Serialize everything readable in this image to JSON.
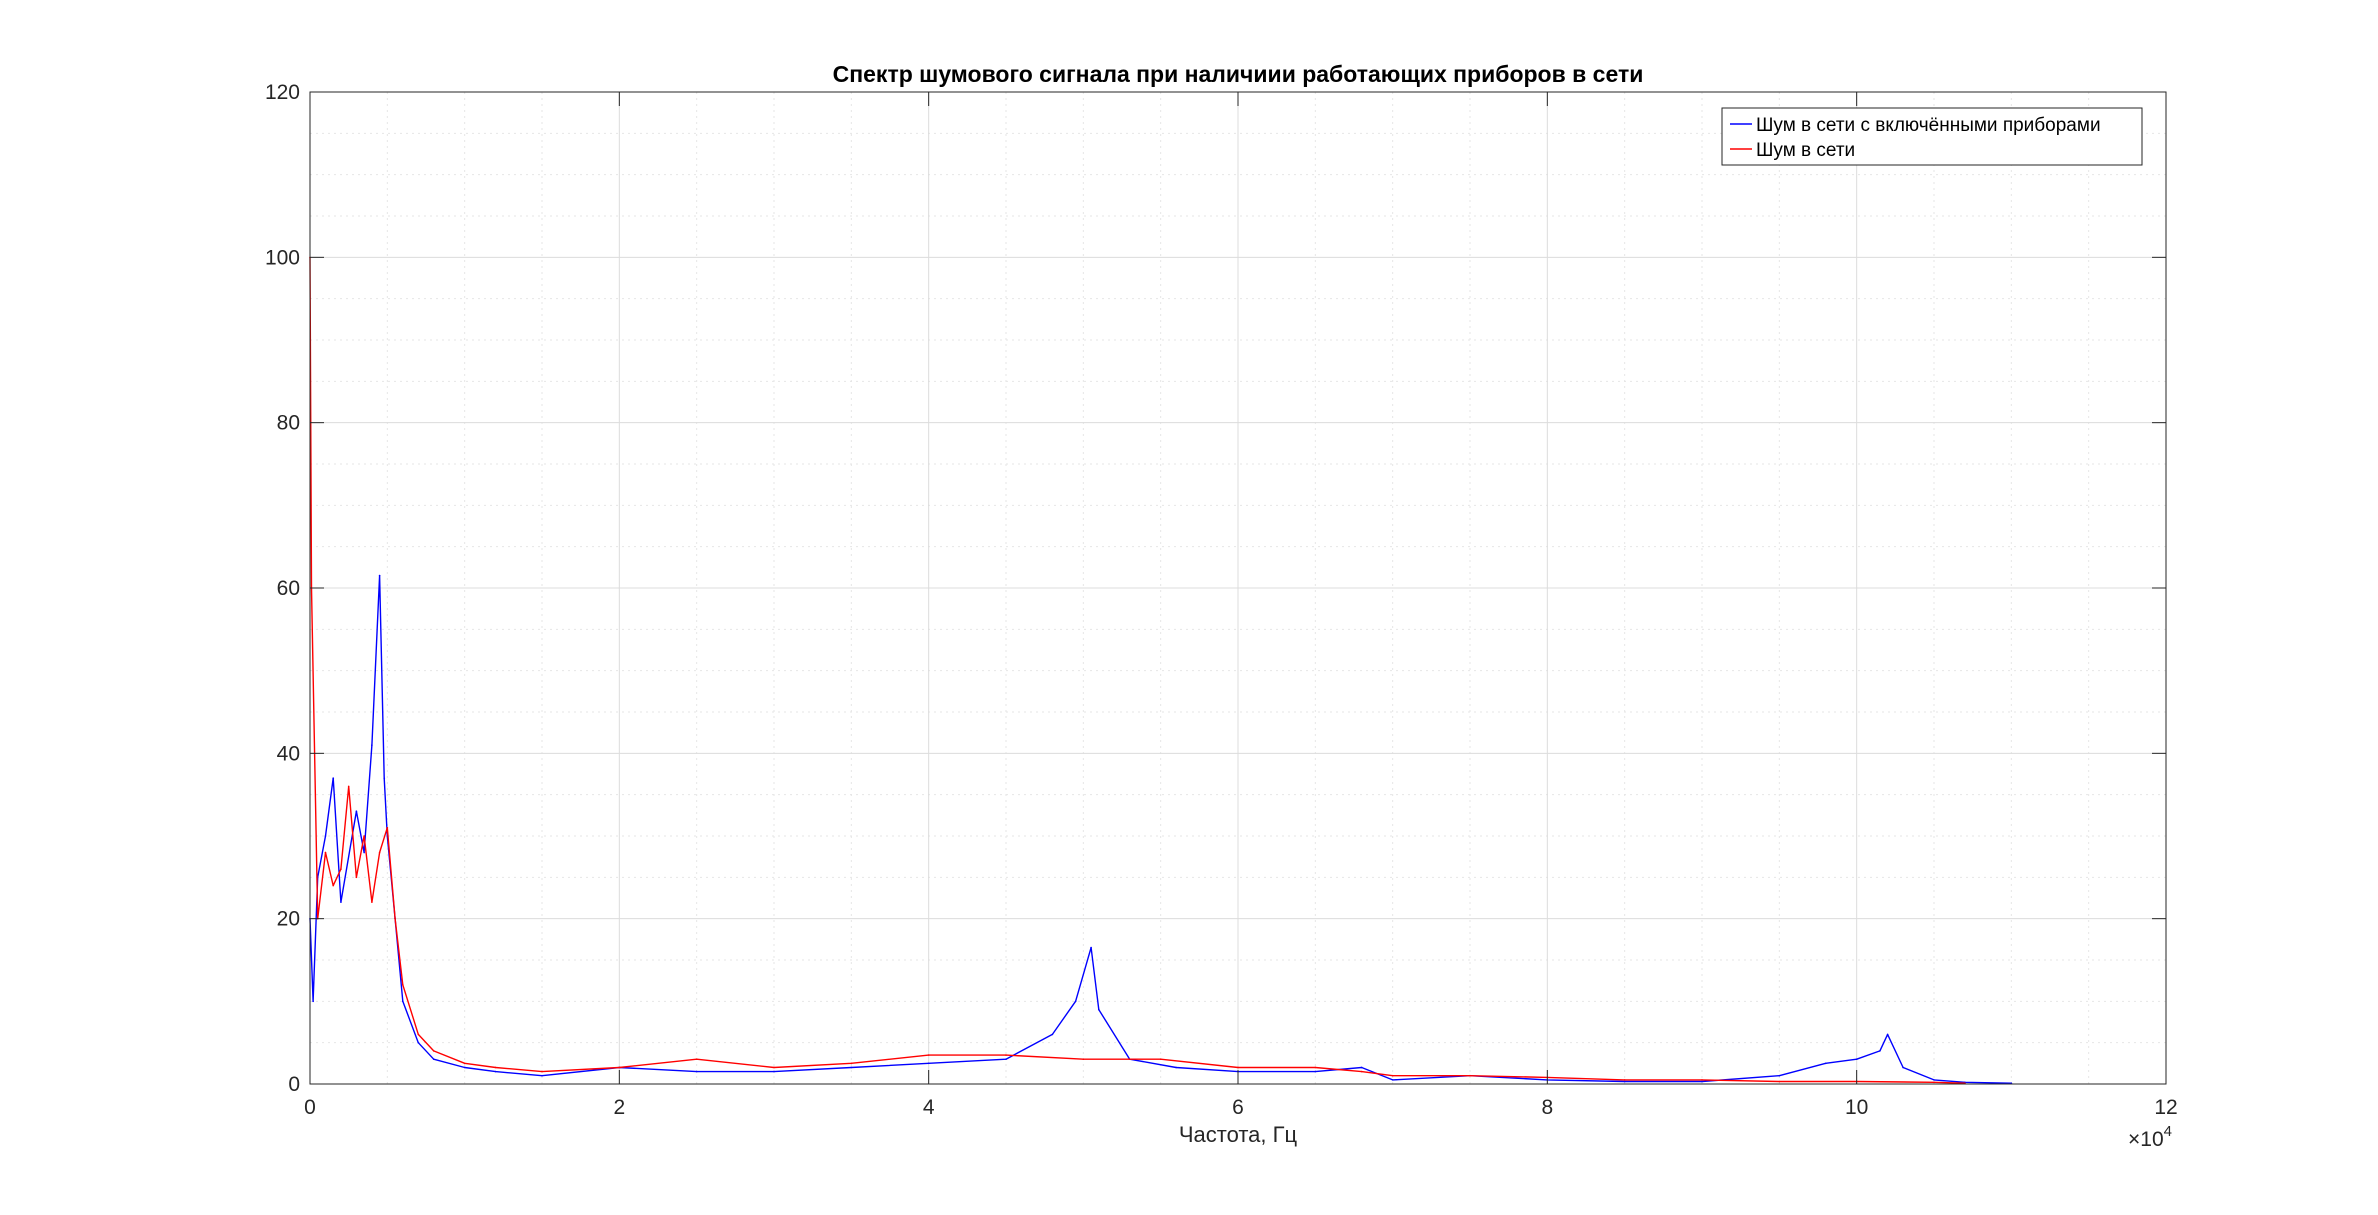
{
  "chart_data": {
    "type": "line",
    "title": "Спектр шумового сигнала при наличиии работающих приборов в сети",
    "xlabel": "Частота, Гц",
    "ylabel": "",
    "x_exponent_label": "×10",
    "x_exponent_power": "4",
    "xlim": [
      0,
      12
    ],
    "ylim": [
      0,
      120
    ],
    "x_ticks": [
      0,
      2,
      4,
      6,
      8,
      10,
      12
    ],
    "y_ticks": [
      0,
      20,
      40,
      60,
      80,
      100,
      120
    ],
    "x_tick_labels": [
      "0",
      "2",
      "4",
      "6",
      "8",
      "10",
      "12"
    ],
    "y_tick_labels": [
      "0",
      "20",
      "40",
      "60",
      "80",
      "100",
      "120"
    ],
    "grid": true,
    "minor_grid": true,
    "legend_position": "top-right",
    "series": [
      {
        "name": "Шум в сети с включёнными приборами",
        "color": "#0000ff",
        "x": [
          0,
          0.02,
          0.05,
          0.1,
          0.15,
          0.2,
          0.3,
          0.35,
          0.4,
          0.45,
          0.48,
          0.5,
          0.55,
          0.6,
          0.7,
          0.8,
          1.0,
          1.2,
          1.5,
          2.0,
          2.5,
          3.0,
          3.5,
          4.0,
          4.5,
          4.8,
          4.95,
          5.05,
          5.1,
          5.3,
          5.6,
          6.0,
          6.5,
          6.8,
          7.0,
          7.5,
          8.0,
          8.5,
          9.0,
          9.5,
          9.8,
          10.0,
          10.15,
          10.2,
          10.3,
          10.5,
          10.7,
          11.0
        ],
        "y": [
          20,
          10,
          25,
          30,
          37,
          22,
          33,
          28,
          41,
          61.5,
          37,
          30,
          20,
          10,
          5,
          3,
          2,
          1.5,
          1,
          2,
          1.5,
          1.5,
          2,
          2.5,
          3,
          6,
          10,
          16.5,
          9,
          3,
          2,
          1.5,
          1.5,
          2,
          0.5,
          1,
          0.5,
          0.3,
          0.3,
          1,
          2.5,
          3,
          4,
          6,
          2,
          0.5,
          0.2,
          0.1
        ]
      },
      {
        "name": "Шум в сети",
        "color": "#ff0000",
        "x": [
          0,
          0.01,
          0.05,
          0.1,
          0.15,
          0.2,
          0.25,
          0.3,
          0.35,
          0.4,
          0.45,
          0.5,
          0.55,
          0.6,
          0.7,
          0.8,
          1.0,
          1.2,
          1.5,
          2.0,
          2.5,
          3.0,
          3.5,
          4.0,
          4.5,
          5.0,
          5.5,
          6.0,
          6.5,
          6.8,
          7.0,
          7.5,
          8.0,
          8.5,
          9.0,
          9.5,
          10.0,
          10.5,
          10.7
        ],
        "y": [
          100,
          60,
          20,
          28,
          24,
          26,
          36,
          25,
          30,
          22,
          28,
          31,
          20,
          12,
          6,
          4,
          2.5,
          2,
          1.5,
          2,
          3,
          2,
          2.5,
          3.5,
          3.5,
          3,
          3,
          2,
          2,
          1.5,
          1,
          1,
          0.8,
          0.5,
          0.5,
          0.3,
          0.3,
          0.2,
          0.1
        ]
      }
    ]
  }
}
